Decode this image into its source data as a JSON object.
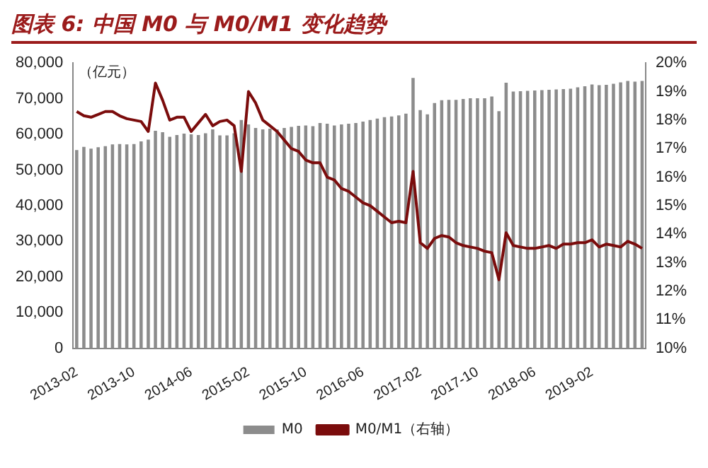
{
  "chart_data": {
    "type": "bar",
    "title": "图表 6: 中国 M0 与 M0/M1 变化趋势",
    "ylabel": "（亿元）",
    "categories": [
      "2013-02",
      null,
      null,
      null,
      null,
      null,
      null,
      null,
      "2013-10",
      null,
      null,
      null,
      null,
      null,
      null,
      null,
      "2014-06",
      null,
      null,
      null,
      null,
      null,
      null,
      null,
      "2015-02",
      null,
      null,
      null,
      null,
      null,
      null,
      null,
      "2015-10",
      null,
      null,
      null,
      null,
      null,
      null,
      null,
      "2016-06",
      null,
      null,
      null,
      null,
      null,
      null,
      null,
      "2017-02",
      null,
      null,
      null,
      null,
      null,
      null,
      null,
      "2017-10",
      null,
      null,
      null,
      null,
      null,
      null,
      null,
      "2018-06",
      null,
      null,
      null,
      null,
      null,
      null,
      null,
      "2019-02",
      null,
      null,
      null,
      null,
      null,
      null,
      null
    ],
    "series": [
      {
        "name": "M0",
        "color": "#8c8c8c",
        "values": [
          55600,
          56500,
          56000,
          56400,
          56700,
          57200,
          57300,
          57200,
          57300,
          58000,
          58500,
          61000,
          60600,
          59300,
          59800,
          60200,
          60000,
          59800,
          60300,
          61400,
          59700,
          59700,
          60300,
          64000,
          62800,
          61800,
          61400,
          61600,
          61400,
          61800,
          62100,
          62400,
          62500,
          62300,
          63200,
          63000,
          62500,
          62800,
          63000,
          63200,
          63600,
          64000,
          64400,
          64800,
          65000,
          65300,
          65800,
          75800,
          66800,
          65600,
          68800,
          69600,
          69700,
          69700,
          69900,
          70100,
          70100,
          70100,
          70600,
          66500,
          74500,
          72000,
          72100,
          72200,
          72300,
          72400,
          72500,
          72600,
          72700,
          72800,
          73200,
          73500,
          74000,
          73800,
          73900,
          74200,
          74600,
          75000,
          74800,
          75000
        ]
      },
      {
        "name": "M0/M1（右轴）",
        "type": "line",
        "axis": "y2",
        "color": "#7b0c0c",
        "values": [
          18.3,
          18.15,
          18.1,
          18.2,
          18.3,
          18.3,
          18.15,
          18.05,
          18.0,
          17.95,
          17.6,
          19.3,
          18.7,
          18.0,
          18.1,
          18.1,
          17.6,
          17.9,
          18.2,
          17.8,
          17.95,
          18.0,
          17.8,
          16.2,
          19.0,
          18.6,
          18.0,
          17.8,
          17.6,
          17.3,
          17.0,
          16.9,
          16.6,
          16.5,
          16.5,
          16.0,
          15.9,
          15.6,
          15.5,
          15.3,
          15.1,
          15.0,
          14.8,
          14.6,
          14.4,
          14.45,
          14.4,
          16.2,
          13.7,
          13.5,
          13.85,
          13.95,
          13.9,
          13.7,
          13.6,
          13.55,
          13.5,
          13.4,
          13.35,
          12.4,
          14.05,
          13.6,
          13.55,
          13.5,
          13.5,
          13.55,
          13.6,
          13.5,
          13.65,
          13.65,
          13.7,
          13.7,
          13.8,
          13.55,
          13.65,
          13.6,
          13.55,
          13.75,
          13.65,
          13.5
        ]
      }
    ],
    "ylim": [
      0,
      80000
    ],
    "yticks": [
      {
        "value": 0,
        "label": "0"
      },
      {
        "value": 10000,
        "label": "10,000"
      },
      {
        "value": 20000,
        "label": "20,000"
      },
      {
        "value": 30000,
        "label": "30,000"
      },
      {
        "value": 40000,
        "label": "40,000"
      },
      {
        "value": 50000,
        "label": "50,000"
      },
      {
        "value": 60000,
        "label": "60,000"
      },
      {
        "value": 70000,
        "label": "70,000"
      },
      {
        "value": 80000,
        "label": "80,000"
      }
    ],
    "y2lim": [
      10,
      20
    ],
    "y2ticks": [
      {
        "value": 10,
        "label": "10%"
      },
      {
        "value": 11,
        "label": "11%"
      },
      {
        "value": 12,
        "label": "12%"
      },
      {
        "value": 13,
        "label": "13%"
      },
      {
        "value": 14,
        "label": "14%"
      },
      {
        "value": 15,
        "label": "15%"
      },
      {
        "value": 16,
        "label": "16%"
      },
      {
        "value": 17,
        "label": "17%"
      },
      {
        "value": 18,
        "label": "18%"
      },
      {
        "value": 19,
        "label": "19%"
      },
      {
        "value": 20,
        "label": "20%"
      }
    ],
    "grid": false,
    "legend": "bottom",
    "marker": "none",
    "line_style": "solid"
  }
}
